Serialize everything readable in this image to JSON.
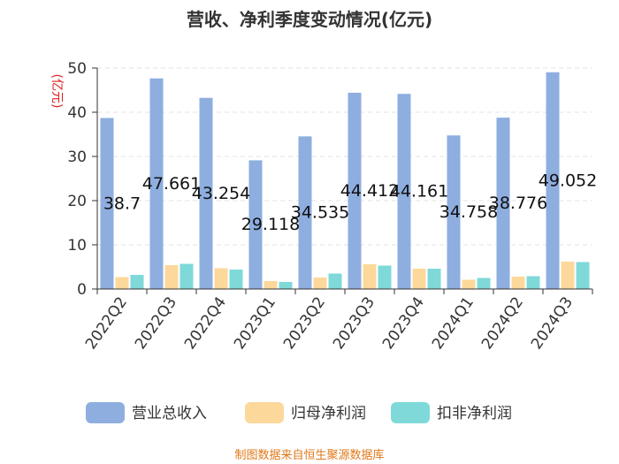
{
  "chart_data": {
    "type": "bar",
    "title": "营收、净利季度变动情况(亿元)",
    "unit_label": "(亿元)",
    "categories": [
      "2022Q2",
      "2022Q3",
      "2022Q4",
      "2023Q1",
      "2023Q2",
      "2023Q3",
      "2023Q4",
      "2024Q1",
      "2024Q2",
      "2024Q3"
    ],
    "series": [
      {
        "name": "营业总收入",
        "color": "#8eaee0",
        "values": [
          38.7,
          47.661,
          43.254,
          29.118,
          34.535,
          44.412,
          44.161,
          34.758,
          38.776,
          49.052
        ]
      },
      {
        "name": "归母净利润",
        "color": "#fcd89a",
        "values": [
          2.7,
          5.4,
          4.7,
          1.8,
          2.6,
          5.6,
          4.6,
          2.1,
          2.8,
          6.2
        ]
      },
      {
        "name": "扣非净利润",
        "color": "#7fd9d9",
        "values": [
          3.2,
          5.7,
          4.4,
          1.6,
          3.5,
          5.3,
          4.6,
          2.5,
          2.9,
          6.1
        ]
      }
    ],
    "data_labels": [
      "38.7",
      "47.661",
      "43.254",
      "29.118",
      "34.535",
      "44.412",
      "44.161",
      "34.758",
      "38.776",
      "49.052"
    ],
    "yticks": [
      "0",
      "10",
      "20",
      "30",
      "40",
      "50"
    ],
    "ylim": [
      0,
      50
    ],
    "grid": true,
    "legend_position": "bottom"
  },
  "source": "制图数据来自恒生聚源数据库"
}
